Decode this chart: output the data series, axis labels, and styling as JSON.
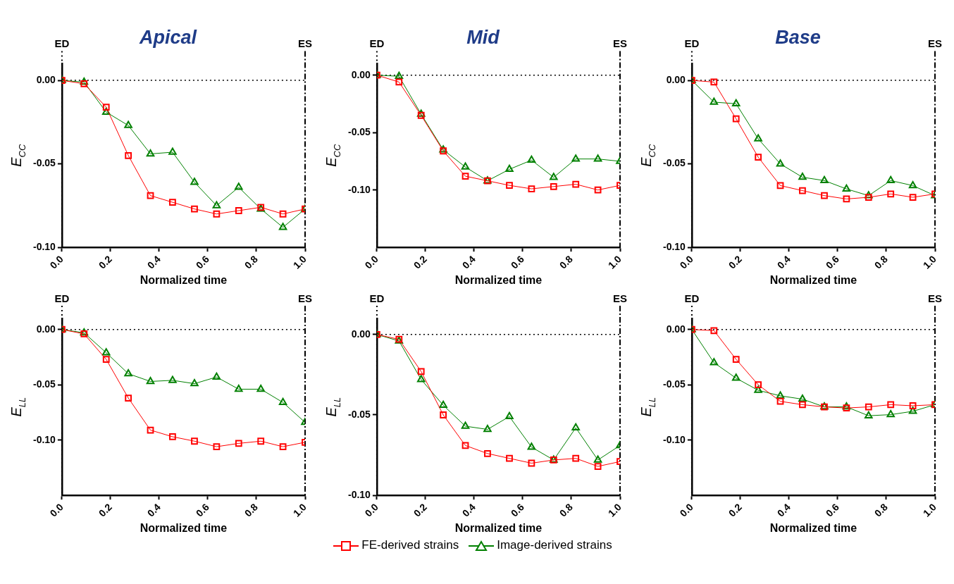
{
  "chart_data": [
    {
      "type": "line",
      "legend": "bottom",
      "title": "Apical",
      "xlabel": "Normalized time",
      "ylabel": "E$_{CC}$",
      "x": [
        0,
        0.091,
        0.182,
        0.273,
        0.364,
        0.455,
        0.545,
        0.636,
        0.727,
        0.818,
        0.909,
        1
      ],
      "xlim": [
        0,
        1
      ],
      "xticks": [
        {
          "value": 0,
          "label": "0.0"
        },
        {
          "value": 0.2,
          "label": "0.2"
        },
        {
          "value": 0.4,
          "label": "0.4"
        },
        {
          "value": 0.6,
          "label": "0.6"
        },
        {
          "value": 0.8,
          "label": "0.8"
        },
        {
          "value": 1,
          "label": "1.0"
        }
      ],
      "ylim": [
        -0.1,
        0.01
      ],
      "yticks": [
        {
          "value": -0.1,
          "label": "-0.10"
        },
        {
          "value": -0.05,
          "label": "-0.05"
        },
        {
          "value": 0,
          "label": "0.00"
        }
      ],
      "grid": false,
      "series": [
        {
          "name": "FE-derived strains",
          "color": "#ff0000",
          "marker": "square",
          "values": [
            0,
            -0.002,
            -0.016,
            -0.045,
            -0.069,
            -0.073,
            -0.077,
            -0.08,
            -0.078,
            -0.076,
            -0.08,
            -0.077
          ]
        },
        {
          "name": "Image-derived strains",
          "color": "#008000",
          "marker": "triangle",
          "values": [
            0,
            -0.001,
            -0.019,
            -0.027,
            -0.044,
            -0.043,
            -0.061,
            -0.075,
            -0.064,
            -0.077,
            -0.088,
            -0.077
          ]
        }
      ],
      "ref_lines": [
        {
          "axis": "y",
          "value": 0,
          "line_style": "dotted"
        },
        {
          "axis": "x",
          "value": 0,
          "label": "ED",
          "line_style": "dotted"
        },
        {
          "axis": "x",
          "value": 1,
          "label": "ES",
          "line_style": "dashed"
        }
      ]
    },
    {
      "type": "line",
      "title": "Mid",
      "xlabel": "Normalized time",
      "ylabel": "E$_{CC}$",
      "x": [
        0,
        0.091,
        0.182,
        0.273,
        0.364,
        0.455,
        0.545,
        0.636,
        0.727,
        0.818,
        0.909,
        1
      ],
      "xlim": [
        0,
        1
      ],
      "xticks": [
        {
          "value": 0,
          "label": "0.0"
        },
        {
          "value": 0.2,
          "label": "0.2"
        },
        {
          "value": 0.4,
          "label": "0.4"
        },
        {
          "value": 0.6,
          "label": "0.6"
        },
        {
          "value": 0.8,
          "label": "0.8"
        },
        {
          "value": 1,
          "label": "1.0"
        }
      ],
      "ylim": [
        -0.15,
        0.01
      ],
      "yticks": [
        {
          "value": -0.1,
          "label": "-0.10"
        },
        {
          "value": -0.05,
          "label": "-0.05"
        },
        {
          "value": 0,
          "label": "0.00"
        }
      ],
      "grid": false,
      "series": [
        {
          "color": "#ff0000",
          "marker": "square",
          "values": [
            0,
            -0.006,
            -0.035,
            -0.066,
            -0.088,
            -0.092,
            -0.096,
            -0.099,
            -0.097,
            -0.095,
            -0.1,
            -0.096
          ]
        },
        {
          "color": "#008000",
          "marker": "triangle",
          "values": [
            0,
            -0.001,
            -0.034,
            -0.065,
            -0.08,
            -0.092,
            -0.082,
            -0.074,
            -0.089,
            -0.073,
            -0.073,
            -0.075
          ]
        }
      ],
      "ref_lines": [
        {
          "axis": "y",
          "value": 0,
          "line_style": "dotted"
        },
        {
          "axis": "x",
          "value": 0,
          "label": "ED",
          "line_style": "dotted"
        },
        {
          "axis": "x",
          "value": 1,
          "label": "ES",
          "line_style": "dashed"
        }
      ]
    },
    {
      "type": "line",
      "title": "Base",
      "xlabel": "Normalized time",
      "ylabel": "E$_{CC}$",
      "x": [
        0,
        0.091,
        0.182,
        0.273,
        0.364,
        0.455,
        0.545,
        0.636,
        0.727,
        0.818,
        0.909,
        1
      ],
      "xlim": [
        0,
        1
      ],
      "xticks": [
        {
          "value": 0,
          "label": "0.0"
        },
        {
          "value": 0.2,
          "label": "0.2"
        },
        {
          "value": 0.4,
          "label": "0.4"
        },
        {
          "value": 0.6,
          "label": "0.6"
        },
        {
          "value": 0.8,
          "label": "0.8"
        },
        {
          "value": 1,
          "label": "1.0"
        }
      ],
      "ylim": [
        -0.1,
        0.01
      ],
      "yticks": [
        {
          "value": -0.1,
          "label": "-0.10"
        },
        {
          "value": -0.05,
          "label": "-0.05"
        },
        {
          "value": 0,
          "label": "0.00"
        }
      ],
      "grid": false,
      "series": [
        {
          "color": "#ff0000",
          "marker": "square",
          "values": [
            0,
            -0.001,
            -0.023,
            -0.046,
            -0.063,
            -0.066,
            -0.069,
            -0.071,
            -0.07,
            -0.068,
            -0.07,
            -0.068
          ]
        },
        {
          "color": "#008000",
          "marker": "triangle",
          "values": [
            0,
            -0.013,
            -0.014,
            -0.035,
            -0.05,
            -0.058,
            -0.06,
            -0.065,
            -0.069,
            -0.06,
            -0.063,
            -0.069
          ]
        }
      ],
      "ref_lines": [
        {
          "axis": "y",
          "value": 0,
          "line_style": "dotted"
        },
        {
          "axis": "x",
          "value": 0,
          "label": "ED",
          "line_style": "dotted"
        },
        {
          "axis": "x",
          "value": 1,
          "label": "ES",
          "line_style": "dashed"
        }
      ]
    },
    {
      "type": "line",
      "xlabel": "Normalized time",
      "ylabel": "E$_{LL}$",
      "x": [
        0,
        0.091,
        0.182,
        0.273,
        0.364,
        0.455,
        0.545,
        0.636,
        0.727,
        0.818,
        0.909,
        1
      ],
      "xlim": [
        0,
        1
      ],
      "xticks": [
        {
          "value": 0,
          "label": "0.0"
        },
        {
          "value": 0.2,
          "label": "0.2"
        },
        {
          "value": 0.4,
          "label": "0.4"
        },
        {
          "value": 0.6,
          "label": "0.6"
        },
        {
          "value": 0.8,
          "label": "0.8"
        },
        {
          "value": 1,
          "label": "1.0"
        }
      ],
      "ylim": [
        -0.15,
        0.01
      ],
      "yticks": [
        {
          "value": -0.1,
          "label": "-0.10"
        },
        {
          "value": -0.05,
          "label": "-0.05"
        },
        {
          "value": 0,
          "label": "0.00"
        }
      ],
      "grid": false,
      "series": [
        {
          "color": "#ff0000",
          "marker": "square",
          "values": [
            0,
            -0.004,
            -0.027,
            -0.062,
            -0.091,
            -0.097,
            -0.101,
            -0.106,
            -0.103,
            -0.101,
            -0.106,
            -0.102
          ]
        },
        {
          "color": "#008000",
          "marker": "triangle",
          "values": [
            0,
            -0.003,
            -0.021,
            -0.04,
            -0.047,
            -0.046,
            -0.049,
            -0.043,
            -0.054,
            -0.054,
            -0.066,
            -0.084
          ]
        }
      ],
      "ref_lines": [
        {
          "axis": "y",
          "value": 0,
          "line_style": "dotted"
        },
        {
          "axis": "x",
          "value": 0,
          "label": "ED",
          "line_style": "dotted"
        },
        {
          "axis": "x",
          "value": 1,
          "label": "ES",
          "line_style": "dashed"
        }
      ]
    },
    {
      "type": "line",
      "xlabel": "Normalized time",
      "ylabel": "E$_{LL}$",
      "x": [
        0,
        0.091,
        0.182,
        0.273,
        0.364,
        0.455,
        0.545,
        0.636,
        0.727,
        0.818,
        0.909,
        1
      ],
      "xlim": [
        0,
        1
      ],
      "xticks": [
        {
          "value": 0,
          "label": "0.0"
        },
        {
          "value": 0.2,
          "label": "0.2"
        },
        {
          "value": 0.4,
          "label": "0.4"
        },
        {
          "value": 0.6,
          "label": "0.6"
        },
        {
          "value": 0.8,
          "label": "0.8"
        },
        {
          "value": 1,
          "label": "1.0"
        }
      ],
      "ylim": [
        -0.1,
        0.01
      ],
      "yticks": [
        {
          "value": -0.1,
          "label": "-0.10"
        },
        {
          "value": -0.05,
          "label": "-0.05"
        },
        {
          "value": 0,
          "label": "0.00"
        }
      ],
      "grid": false,
      "series": [
        {
          "color": "#ff0000",
          "marker": "square",
          "values": [
            0,
            -0.003,
            -0.023,
            -0.05,
            -0.069,
            -0.074,
            -0.077,
            -0.08,
            -0.078,
            -0.077,
            -0.082,
            -0.079
          ]
        },
        {
          "color": "#008000",
          "marker": "triangle",
          "values": [
            0,
            -0.004,
            -0.028,
            -0.044,
            -0.057,
            -0.059,
            -0.051,
            -0.07,
            -0.078,
            -0.058,
            -0.078,
            -0.069
          ]
        }
      ],
      "ref_lines": [
        {
          "axis": "y",
          "value": 0,
          "line_style": "dotted"
        },
        {
          "axis": "x",
          "value": 0,
          "label": "ED",
          "line_style": "dotted"
        },
        {
          "axis": "x",
          "value": 1,
          "label": "ES",
          "line_style": "dashed"
        }
      ]
    },
    {
      "type": "line",
      "xlabel": "Normalized time",
      "ylabel": "E$_{LL}$",
      "x": [
        0,
        0.091,
        0.182,
        0.273,
        0.364,
        0.455,
        0.545,
        0.636,
        0.727,
        0.818,
        0.909,
        1
      ],
      "xlim": [
        0,
        1
      ],
      "xticks": [
        {
          "value": 0,
          "label": "0.0"
        },
        {
          "value": 0.2,
          "label": "0.2"
        },
        {
          "value": 0.4,
          "label": "0.4"
        },
        {
          "value": 0.6,
          "label": "0.6"
        },
        {
          "value": 0.8,
          "label": "0.8"
        },
        {
          "value": 1,
          "label": "1.0"
        }
      ],
      "ylim": [
        -0.15,
        0.01
      ],
      "yticks": [
        {
          "value": -0.1,
          "label": "-0.10"
        },
        {
          "value": -0.05,
          "label": "-0.05"
        },
        {
          "value": 0,
          "label": "0.00"
        }
      ],
      "grid": false,
      "series": [
        {
          "color": "#ff0000",
          "marker": "square",
          "values": [
            0,
            -0.001,
            -0.027,
            -0.05,
            -0.065,
            -0.068,
            -0.07,
            -0.071,
            -0.07,
            -0.068,
            -0.069,
            -0.068
          ]
        },
        {
          "color": "#008000",
          "marker": "triangle",
          "values": [
            0,
            -0.03,
            -0.044,
            -0.055,
            -0.06,
            -0.063,
            -0.07,
            -0.07,
            -0.078,
            -0.077,
            -0.074,
            -0.068
          ]
        }
      ],
      "ref_lines": [
        {
          "axis": "y",
          "value": 0,
          "line_style": "dotted"
        },
        {
          "axis": "x",
          "value": 0,
          "label": "ED",
          "line_style": "dotted"
        },
        {
          "axis": "x",
          "value": 1,
          "label": "ES",
          "line_style": "dashed"
        }
      ]
    }
  ]
}
